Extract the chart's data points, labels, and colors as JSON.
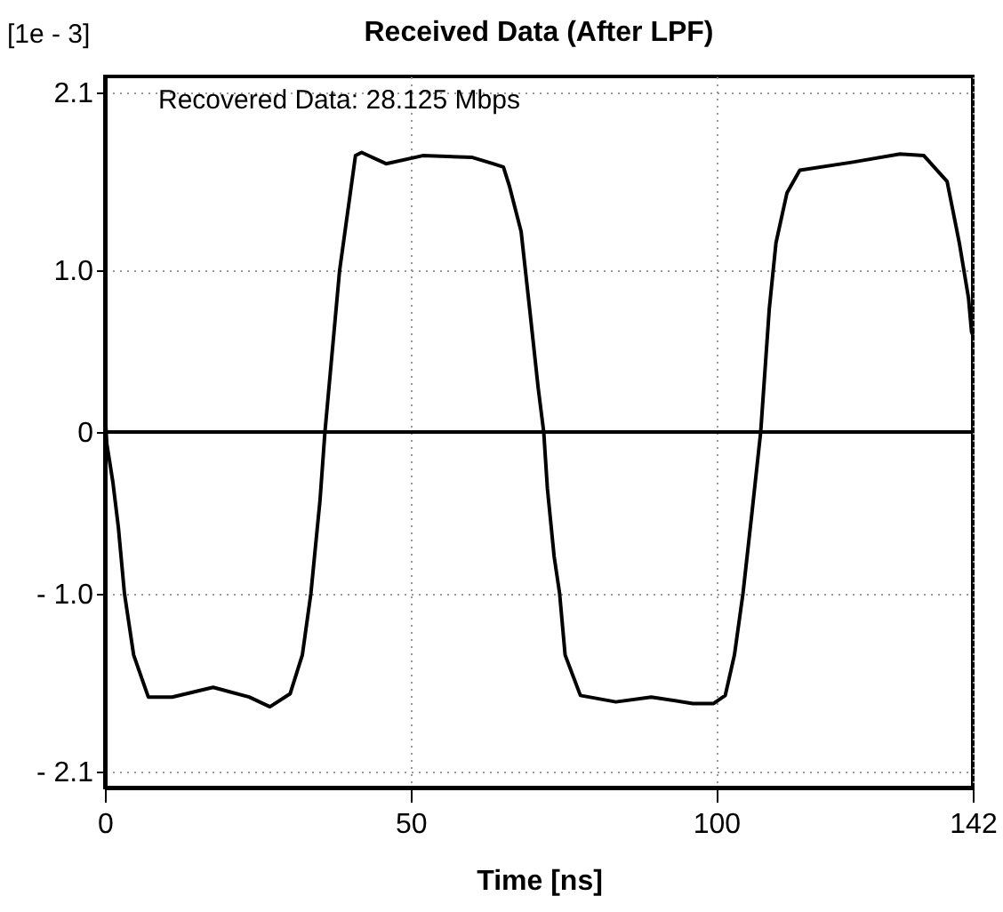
{
  "chart_data": {
    "type": "line",
    "title": "Received Data (After LPF)",
    "ylabel": "[1e - 3]",
    "xlabel": "Time [ns]",
    "annotations": [
      "Recovered Data: 28.125 Mbps"
    ],
    "x": [
      0,
      0.3,
      1.3,
      2.2,
      3.2,
      4.7,
      7.1,
      11,
      17.7,
      23.6,
      27,
      30.3,
      32.3,
      33.7,
      35.2,
      36,
      38.4,
      41,
      42,
      46,
      52,
      60,
      63.5,
      65.2,
      66.2,
      68.1,
      69.5,
      70.9,
      71.8,
      72.4,
      73.5,
      74.4,
      75.3,
      77.8,
      83.6,
      89.4,
      96.2,
      99.6,
      101.5,
      103,
      104.4,
      105.9,
      107.3,
      108.7,
      109.8,
      111.6,
      113.7,
      122.4,
      130.1,
      134,
      137.8,
      139.8,
      141.3,
      141.8,
      142
    ],
    "series": [
      {
        "color": "#000000",
        "values": [
          0.15,
          -0.07,
          -0.31,
          -0.59,
          -1.0,
          -1.38,
          -1.64,
          -1.64,
          -1.58,
          -1.64,
          -1.7,
          -1.62,
          -1.38,
          -1.0,
          -0.42,
          0,
          1.0,
          1.71,
          1.73,
          1.66,
          1.71,
          1.7,
          1.66,
          1.64,
          1.52,
          1.24,
          0.76,
          0.27,
          0,
          -0.35,
          -0.77,
          -1.0,
          -1.38,
          -1.63,
          -1.67,
          -1.64,
          -1.68,
          -1.68,
          -1.63,
          -1.38,
          -1.0,
          -0.49,
          0,
          0.76,
          1.17,
          1.48,
          1.62,
          1.67,
          1.72,
          1.71,
          1.55,
          1.17,
          0.83,
          0.62,
          0.6
        ]
      }
    ],
    "xlim": [
      0,
      142
    ],
    "xticks": [
      0,
      50,
      100,
      142
    ],
    "ylim": [
      -2.2,
      2.2
    ],
    "yticks": [
      {
        "value": -2.1,
        "label": "- 2.1"
      },
      {
        "value": -1,
        "label": "- 1.0"
      },
      0,
      {
        "value": 1,
        "label": "1.0"
      },
      2.1
    ],
    "ref_lines": [
      {
        "axis": "y",
        "value": 0,
        "color": "#000000"
      }
    ],
    "grid": true,
    "marker": "none",
    "line_style": "solid"
  }
}
